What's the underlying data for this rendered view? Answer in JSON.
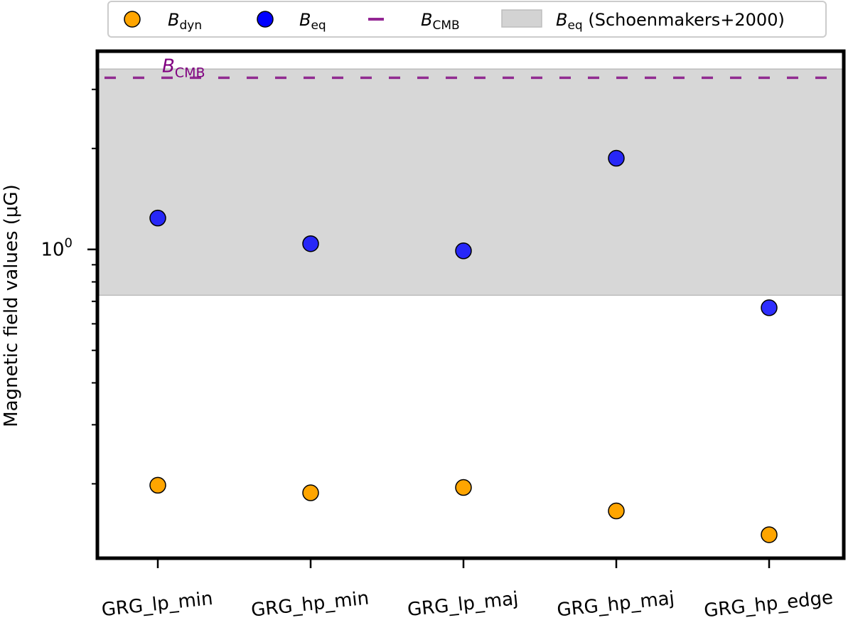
{
  "chart_data": {
    "type": "scatter",
    "categories": [
      "GRG_lp_min",
      "GRG_hp_min",
      "GRG_lp_maj",
      "GRG_hp_maj",
      "GRG_hp_edge"
    ],
    "ylabel": "Magnetic field values (μG)",
    "yscale": "log",
    "ylim": [
      0.12,
      3.9
    ],
    "y_tick_label": {
      "base": "10",
      "exp": "0",
      "value": 1.0
    },
    "series": [
      {
        "key": "bdyn",
        "name": "B",
        "sub": "dyn",
        "color": "#ffa500",
        "values": [
          0.198,
          0.188,
          0.195,
          0.166,
          0.141
        ]
      },
      {
        "key": "beq",
        "name": "B",
        "sub": "eq",
        "color": "#0000ff",
        "values": [
          1.24,
          1.04,
          0.99,
          1.87,
          0.67
        ]
      }
    ],
    "reference_line": {
      "name": "B",
      "sub": "CMB",
      "value": 3.25,
      "color": "#800080",
      "annotation_text": "B",
      "annotation_sub": "CMB"
    },
    "shaded_band": {
      "name": "B",
      "sub": "eq",
      "suffix": " (Schoenmakers+2000)",
      "range": [
        0.73,
        3.45
      ],
      "color": "#d3d3d3"
    },
    "grid": false,
    "legend_position": "top-center"
  }
}
